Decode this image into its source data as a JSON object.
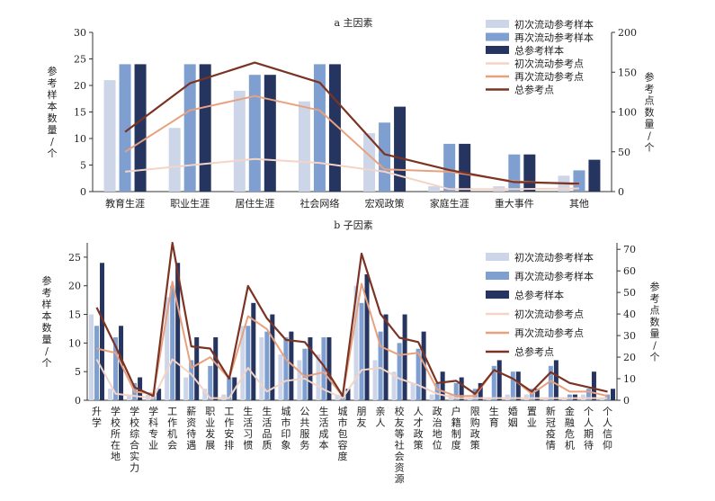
{
  "colors": {
    "initial_sample": "#cdd6e8",
    "re_sample": "#7f9fd1",
    "total_sample": "#25355f",
    "initial_point": "#f3d4c6",
    "re_point": "#e8a17f",
    "total_point": "#7b3424"
  },
  "chart_data": [
    {
      "type": "bar",
      "title": "a 主因素",
      "ylabel": "参考样本数量/个",
      "y2label": "参考点数量/个",
      "ylim": [
        0,
        30
      ],
      "yticks": [
        0,
        5,
        10,
        15,
        20,
        25,
        30
      ],
      "y2lim": [
        0,
        200
      ],
      "y2ticks": [
        0,
        50,
        100,
        150,
        200
      ],
      "legend": "top-right",
      "categories": [
        "教育生涯",
        "职业生涯",
        "居住生涯",
        "社会网络",
        "宏观政策",
        "家庭生涯",
        "重大事件",
        "其他"
      ],
      "series": [
        {
          "name": "初次流动参考样本",
          "kind": "bar",
          "axis": "left",
          "values": [
            21,
            12,
            19,
            17,
            11,
            1,
            1,
            3
          ]
        },
        {
          "name": "再次流动参考样本",
          "kind": "bar",
          "axis": "left",
          "values": [
            24,
            24,
            22,
            24,
            13,
            9,
            7,
            4
          ]
        },
        {
          "name": "总参考样本",
          "kind": "bar",
          "axis": "left",
          "values": [
            24,
            24,
            22,
            24,
            16,
            9,
            7,
            6
          ]
        },
        {
          "name": "初次流动参考点",
          "kind": "line",
          "axis": "right",
          "values": [
            25,
            33,
            41,
            36,
            25,
            3,
            3,
            4
          ]
        },
        {
          "name": "再次流动参考点",
          "kind": "line",
          "axis": "right",
          "values": [
            50,
            102,
            120,
            102,
            28,
            25,
            13,
            9
          ]
        },
        {
          "name": "总参考点",
          "kind": "line",
          "axis": "right",
          "values": [
            75,
            136,
            162,
            137,
            47,
            27,
            12,
            10
          ]
        }
      ]
    },
    {
      "type": "bar",
      "title": "b 子因素",
      "ylabel": "参考样本数量/个",
      "y2label": "参考点数量/个",
      "ylim": [
        0,
        27.5
      ],
      "yticks": [
        0,
        5,
        10,
        15,
        20,
        25
      ],
      "y2lim": [
        0,
        73
      ],
      "y2ticks": [
        0,
        10,
        20,
        30,
        40,
        50,
        60,
        70
      ],
      "legend": "top-right",
      "categories": [
        "升学",
        "学校所在地",
        "学校综合实力",
        "学科专业",
        "工作机会",
        "薪资待遇",
        "职业发展",
        "工作安排",
        "生活习惯",
        "生活品质",
        "城市印象",
        "公共服务",
        "生活成本",
        "城市包容度",
        "朋友",
        "亲人",
        "校友等社会资源",
        "人才政策",
        "政治地位",
        "户籍制度",
        "限购政策",
        "生育",
        "婚姻",
        "置业",
        "新冠疫情",
        "金融危机",
        "个人期待",
        "个人信仰"
      ],
      "series": [
        {
          "name": "初次流动参考样本",
          "kind": "bar",
          "axis": "left",
          "values": [
            15,
            2,
            1,
            1,
            18,
            4,
            2,
            1,
            13,
            11,
            8,
            7,
            8,
            1,
            20,
            7,
            5,
            3,
            1,
            1,
            0.5,
            0.5,
            1,
            1,
            0.5,
            0.5,
            1,
            0.5
          ]
        },
        {
          "name": "再次流动参考样本",
          "kind": "bar",
          "axis": "left",
          "values": [
            13,
            11,
            3,
            1,
            20,
            7,
            6,
            4,
            13,
            12,
            11,
            9,
            11,
            1,
            17,
            12,
            10,
            9,
            3,
            3,
            2,
            6,
            5,
            2,
            6,
            1,
            2,
            1
          ]
        },
        {
          "name": "总参考样本",
          "kind": "bar",
          "axis": "left",
          "values": [
            24,
            13,
            4,
            2,
            24,
            11,
            11,
            4,
            17,
            15,
            12,
            11,
            11,
            2,
            22,
            15,
            15,
            12,
            5,
            4,
            3,
            7,
            5,
            2,
            7,
            1,
            5,
            2
          ]
        },
        {
          "name": "初次流动参考点",
          "kind": "line",
          "axis": "right",
          "values": [
            19,
            3,
            2,
            1,
            19,
            12,
            1,
            1,
            15,
            4,
            9,
            10,
            5,
            1,
            14,
            15,
            10,
            7,
            3,
            1,
            1,
            1,
            1,
            1,
            1,
            1,
            1,
            1
          ]
        },
        {
          "name": "再次流动参考点",
          "kind": "line",
          "axis": "right",
          "values": [
            24,
            22,
            4,
            3,
            55,
            15,
            20,
            10,
            39,
            33,
            19,
            11,
            13,
            2,
            54,
            25,
            21,
            22,
            5,
            2,
            2,
            14,
            10,
            3,
            9,
            4,
            4,
            2
          ]
        },
        {
          "name": "总参考点",
          "kind": "line",
          "axis": "right",
          "values": [
            43,
            25,
            6,
            2,
            73,
            25,
            24,
            10,
            53,
            38,
            28,
            27,
            16,
            2,
            68,
            40,
            29,
            27,
            8,
            9,
            3,
            14,
            10,
            4,
            13,
            8,
            6,
            4
          ]
        }
      ]
    }
  ]
}
